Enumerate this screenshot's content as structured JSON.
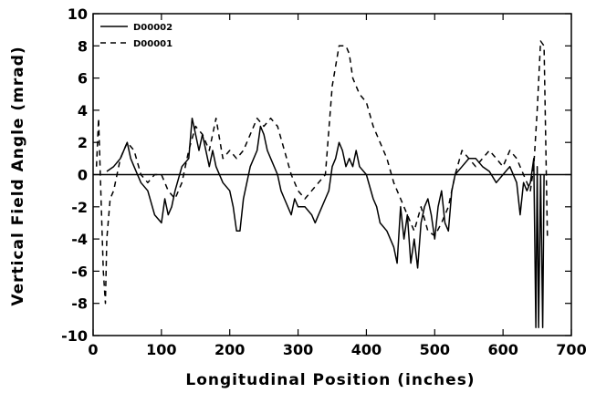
{
  "chart_data": {
    "type": "line",
    "xlabel": "Longitudinal Position (inches)",
    "ylabel": "Vertical Field Angle (mrad)",
    "xlim": [
      0,
      700
    ],
    "ylim": [
      -10,
      10
    ],
    "xticks": [
      0,
      100,
      200,
      300,
      400,
      500,
      600,
      700
    ],
    "yticks": [
      -10,
      -8,
      -6,
      -4,
      -2,
      0,
      2,
      4,
      6,
      8,
      10
    ],
    "grid": false,
    "legend_position": "top-left",
    "reference_line_y": 0,
    "series": [
      {
        "name": "D00002",
        "style": "solid",
        "color": "#000000",
        "x": [
          20,
          30,
          40,
          50,
          55,
          60,
          70,
          80,
          90,
          100,
          105,
          110,
          115,
          120,
          130,
          140,
          145,
          150,
          155,
          160,
          170,
          175,
          180,
          190,
          200,
          205,
          210,
          215,
          220,
          230,
          240,
          245,
          250,
          255,
          260,
          270,
          275,
          280,
          290,
          295,
          300,
          310,
          320,
          325,
          330,
          340,
          345,
          350,
          355,
          360,
          365,
          370,
          375,
          380,
          385,
          390,
          400,
          410,
          415,
          420,
          430,
          440,
          445,
          450,
          455,
          460,
          465,
          470,
          475,
          480,
          485,
          490,
          495,
          500,
          505,
          510,
          515,
          520,
          525,
          530,
          540,
          550,
          560,
          570,
          580,
          590,
          600,
          610,
          620,
          625,
          630,
          635,
          640,
          645,
          648,
          650,
          652,
          655,
          658,
          660
        ],
        "y": [
          0.2,
          0.5,
          1.0,
          2.0,
          1.0,
          0.5,
          -0.5,
          -1.0,
          -2.5,
          -3.0,
          -1.5,
          -2.5,
          -2.0,
          -1.0,
          0.5,
          1.0,
          3.5,
          2.5,
          1.5,
          2.5,
          0.5,
          1.5,
          0.5,
          -0.5,
          -1.0,
          -2.0,
          -3.5,
          -3.5,
          -1.5,
          0.5,
          1.5,
          3.0,
          2.5,
          1.5,
          1.0,
          0.0,
          -1.0,
          -1.5,
          -2.5,
          -1.5,
          -2.0,
          -2.0,
          -2.5,
          -3.0,
          -2.5,
          -1.5,
          -1.0,
          0.5,
          1.0,
          2.0,
          1.5,
          0.5,
          1.0,
          0.5,
          1.5,
          0.5,
          0.0,
          -1.5,
          -2.0,
          -3.0,
          -3.5,
          -4.5,
          -5.5,
          -2.0,
          -4.0,
          -2.5,
          -5.5,
          -4.0,
          -5.8,
          -3.0,
          -2.0,
          -1.5,
          -2.5,
          -4.0,
          -2.0,
          -1.0,
          -3.0,
          -3.5,
          -1.0,
          0.0,
          0.5,
          1.0,
          1.0,
          0.5,
          0.2,
          -0.5,
          0.0,
          0.5,
          -0.5,
          -2.5,
          -0.5,
          -1.0,
          -0.5,
          1.0,
          -9.5,
          0.5,
          -9.5,
          0.0,
          -9.5,
          0.0
        ]
      },
      {
        "name": "D00001",
        "style": "dashed",
        "color": "#000000",
        "x": [
          5,
          8,
          12,
          15,
          18,
          20,
          25,
          30,
          40,
          50,
          60,
          70,
          80,
          90,
          100,
          110,
          120,
          130,
          140,
          150,
          160,
          170,
          180,
          190,
          200,
          210,
          220,
          230,
          240,
          250,
          260,
          270,
          280,
          290,
          300,
          310,
          320,
          330,
          340,
          350,
          360,
          370,
          375,
          380,
          390,
          400,
          410,
          420,
          430,
          440,
          450,
          460,
          470,
          480,
          490,
          500,
          510,
          520,
          530,
          540,
          550,
          560,
          570,
          580,
          590,
          600,
          610,
          620,
          630,
          640,
          645,
          650,
          655,
          660,
          665
        ],
        "y": [
          0.5,
          3.5,
          -2.0,
          -6.0,
          -8.0,
          -4.0,
          -1.5,
          -1.0,
          1.0,
          2.0,
          1.5,
          0.0,
          -0.5,
          0.0,
          0.0,
          -1.0,
          -1.5,
          -0.5,
          1.5,
          3.0,
          2.5,
          1.5,
          3.5,
          1.0,
          1.5,
          1.0,
          1.5,
          2.5,
          3.5,
          3.0,
          3.5,
          3.0,
          1.5,
          0.0,
          -1.0,
          -1.5,
          -1.0,
          -0.5,
          0.0,
          5.5,
          8.0,
          8.0,
          7.5,
          6.0,
          5.0,
          4.5,
          3.0,
          2.0,
          1.0,
          -0.5,
          -1.5,
          -2.5,
          -3.5,
          -2.0,
          -3.5,
          -3.8,
          -3.0,
          -2.0,
          0.0,
          1.5,
          1.0,
          0.5,
          1.0,
          1.5,
          1.0,
          0.5,
          1.5,
          1.0,
          0.0,
          -1.0,
          0.5,
          4.0,
          8.3,
          8.0,
          -4.0
        ]
      }
    ]
  }
}
